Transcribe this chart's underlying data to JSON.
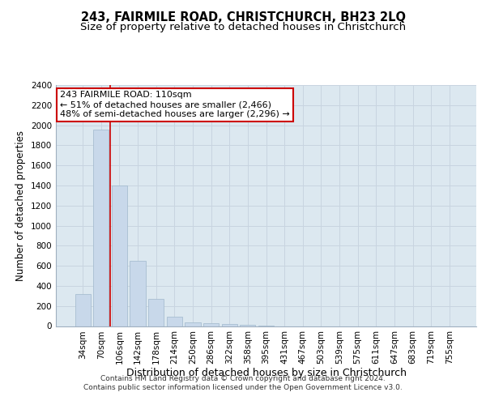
{
  "title_line1": "243, FAIRMILE ROAD, CHRISTCHURCH, BH23 2LQ",
  "title_line2": "Size of property relative to detached houses in Christchurch",
  "xlabel": "Distribution of detached houses by size in Christchurch",
  "ylabel": "Number of detached properties",
  "bar_labels": [
    "34sqm",
    "70sqm",
    "106sqm",
    "142sqm",
    "178sqm",
    "214sqm",
    "250sqm",
    "286sqm",
    "322sqm",
    "358sqm",
    "395sqm",
    "431sqm",
    "467sqm",
    "503sqm",
    "539sqm",
    "575sqm",
    "611sqm",
    "647sqm",
    "683sqm",
    "719sqm",
    "755sqm"
  ],
  "bar_values": [
    320,
    1960,
    1400,
    650,
    270,
    95,
    40,
    30,
    20,
    10,
    3,
    0,
    0,
    0,
    0,
    0,
    0,
    0,
    0,
    0,
    0
  ],
  "bar_color": "#c8d8ea",
  "bar_edge_color": "#a0b8cc",
  "vline_color": "#cc0000",
  "ylim": [
    0,
    2400
  ],
  "yticks": [
    0,
    200,
    400,
    600,
    800,
    1000,
    1200,
    1400,
    1600,
    1800,
    2000,
    2200,
    2400
  ],
  "annotation_box_text": "243 FAIRMILE ROAD: 110sqm\n← 51% of detached houses are smaller (2,466)\n48% of semi-detached houses are larger (2,296) →",
  "annotation_box_color": "#cc0000",
  "annotation_box_fill": "#ffffff",
  "grid_color": "#c8d4e0",
  "bg_color": "#dce8f0",
  "footer_line1": "Contains HM Land Registry data © Crown copyright and database right 2024.",
  "footer_line2": "Contains public sector information licensed under the Open Government Licence v3.0.",
  "title1_fontsize": 10.5,
  "title2_fontsize": 9.5,
  "tick_fontsize": 7.5,
  "xlabel_fontsize": 9,
  "ylabel_fontsize": 8.5,
  "annotation_fontsize": 8
}
